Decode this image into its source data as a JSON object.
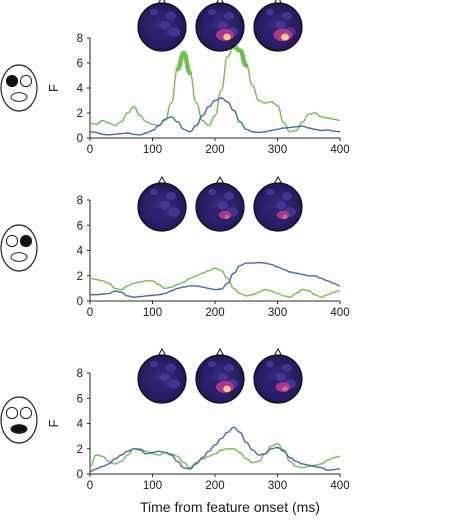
{
  "colors": {
    "green": "#6cc24a",
    "blue": "#3f6cae",
    "axis": "#2a2a2a",
    "face_fill": "#ffffff",
    "face_dark": "#111111",
    "topo_bg": "#2a1d66",
    "topo_hot": "#c33a8e",
    "topo_max": "#f7d77b"
  },
  "x_axis_title": "Time from feature onset (ms)",
  "chart_data": [
    {
      "type": "line",
      "feature": "left-eye",
      "ylabel": "F",
      "xlim": [
        0,
        400
      ],
      "ylim": [
        0,
        8
      ],
      "xticks": [
        0,
        100,
        200,
        300,
        400
      ],
      "yticks": [
        0,
        2,
        4,
        6,
        8
      ],
      "series": [
        {
          "color": "green",
          "x": [
            0,
            10,
            20,
            30,
            40,
            50,
            60,
            70,
            80,
            90,
            100,
            110,
            120,
            130,
            140,
            150,
            160,
            170,
            180,
            190,
            200,
            210,
            220,
            230,
            240,
            250,
            260,
            270,
            280,
            290,
            300,
            310,
            320,
            330,
            340,
            350,
            360,
            370,
            380,
            390,
            400
          ],
          "y": [
            1.2,
            1.1,
            1.4,
            1.2,
            1.0,
            1.3,
            2.0,
            2.5,
            1.8,
            1.3,
            1.1,
            1.0,
            1.4,
            2.8,
            5.5,
            6.8,
            5.2,
            2.8,
            1.4,
            1.0,
            1.8,
            3.8,
            6.5,
            7.3,
            7.0,
            5.8,
            4.2,
            3.0,
            2.8,
            2.9,
            2.6,
            1.2,
            0.5,
            0.6,
            1.3,
            1.9,
            2.0,
            1.7,
            1.6,
            1.5,
            1.4
          ]
        },
        {
          "color": "blue",
          "x": [
            0,
            10,
            20,
            30,
            40,
            50,
            60,
            70,
            80,
            90,
            100,
            110,
            120,
            130,
            140,
            150,
            160,
            170,
            180,
            190,
            200,
            210,
            220,
            230,
            240,
            250,
            260,
            270,
            280,
            290,
            300,
            310,
            320,
            330,
            340,
            350,
            360,
            370,
            380,
            390,
            400
          ],
          "y": [
            0.5,
            0.45,
            0.3,
            0.25,
            0.3,
            0.35,
            0.4,
            0.3,
            0.25,
            0.4,
            0.6,
            1.0,
            1.5,
            1.7,
            1.3,
            0.7,
            0.5,
            1.0,
            1.8,
            2.5,
            3.0,
            3.2,
            2.9,
            2.2,
            1.3,
            0.7,
            0.5,
            0.45,
            0.5,
            0.6,
            0.7,
            0.8,
            0.85,
            0.9,
            0.95,
            0.8,
            0.7,
            0.6,
            0.65,
            0.55,
            0.5
          ]
        }
      ],
      "significant_spans": [
        [
          143,
          155
        ],
        [
          227,
          250
        ]
      ],
      "topomap_intensity": [
        0.05,
        0.55,
        0.6
      ]
    },
    {
      "type": "line",
      "feature": "right-eye",
      "ylabel": "",
      "xlim": [
        0,
        400
      ],
      "ylim": [
        0,
        8
      ],
      "xticks": [
        0,
        100,
        200,
        300,
        400
      ],
      "yticks": [
        0,
        2,
        4,
        6,
        8
      ],
      "series": [
        {
          "color": "green",
          "x": [
            0,
            10,
            20,
            30,
            40,
            50,
            60,
            70,
            80,
            90,
            100,
            110,
            120,
            130,
            140,
            150,
            160,
            170,
            180,
            190,
            200,
            210,
            220,
            230,
            240,
            250,
            260,
            270,
            280,
            290,
            300,
            310,
            320,
            330,
            340,
            350,
            360,
            370,
            380,
            390,
            400
          ],
          "y": [
            1.8,
            1.7,
            1.6,
            1.4,
            1.0,
            0.9,
            1.2,
            1.4,
            1.5,
            1.6,
            1.6,
            1.3,
            1.0,
            1.1,
            1.3,
            1.5,
            1.8,
            2.0,
            2.2,
            2.4,
            2.6,
            2.4,
            1.8,
            1.0,
            0.6,
            0.4,
            0.5,
            0.7,
            0.9,
            0.8,
            0.6,
            0.4,
            0.3,
            0.6,
            0.9,
            0.8,
            0.5,
            0.3,
            0.5,
            0.7,
            0.8
          ]
        },
        {
          "color": "blue",
          "x": [
            0,
            10,
            20,
            30,
            40,
            50,
            60,
            70,
            80,
            90,
            100,
            110,
            120,
            130,
            140,
            150,
            160,
            170,
            180,
            190,
            200,
            210,
            220,
            230,
            240,
            250,
            260,
            270,
            280,
            290,
            300,
            310,
            320,
            330,
            340,
            350,
            360,
            370,
            380,
            390,
            400
          ],
          "y": [
            0.5,
            0.5,
            0.55,
            0.6,
            0.8,
            0.7,
            0.4,
            0.3,
            0.35,
            0.4,
            0.45,
            0.5,
            0.6,
            0.8,
            1.0,
            1.1,
            1.2,
            1.2,
            1.1,
            1.0,
            0.9,
            0.95,
            1.4,
            2.2,
            2.8,
            3.0,
            3.0,
            3.05,
            3.0,
            2.9,
            2.7,
            2.5,
            2.3,
            2.2,
            2.1,
            2.0,
            2.0,
            1.8,
            1.6,
            1.4,
            1.2
          ]
        }
      ],
      "significant_spans": [],
      "topomap_intensity": [
        0.1,
        0.3,
        0.3
      ]
    },
    {
      "type": "line",
      "feature": "mouth",
      "ylabel": "F",
      "xlim": [
        0,
        400
      ],
      "ylim": [
        0,
        8
      ],
      "xticks": [
        0,
        100,
        200,
        300,
        400
      ],
      "yticks": [
        0,
        2,
        4,
        6,
        8
      ],
      "series": [
        {
          "color": "green",
          "x": [
            0,
            10,
            20,
            30,
            40,
            50,
            60,
            70,
            80,
            90,
            100,
            110,
            120,
            130,
            140,
            150,
            160,
            170,
            180,
            190,
            200,
            210,
            220,
            230,
            240,
            250,
            260,
            270,
            280,
            290,
            300,
            310,
            320,
            330,
            340,
            350,
            360,
            370,
            380,
            390,
            400
          ],
          "y": [
            0.6,
            1.5,
            1.4,
            1.0,
            0.8,
            1.0,
            1.5,
            2.0,
            2.0,
            1.8,
            1.6,
            1.5,
            1.7,
            1.6,
            1.4,
            0.9,
            0.5,
            0.9,
            1.2,
            1.4,
            1.6,
            1.9,
            2.0,
            2.0,
            1.7,
            1.2,
            0.9,
            1.0,
            1.6,
            2.2,
            2.4,
            1.9,
            1.0,
            0.6,
            0.5,
            0.6,
            0.7,
            0.8,
            1.1,
            1.3,
            1.4
          ]
        },
        {
          "color": "blue",
          "x": [
            0,
            10,
            20,
            30,
            40,
            50,
            60,
            70,
            80,
            90,
            100,
            110,
            120,
            130,
            140,
            150,
            160,
            170,
            180,
            190,
            200,
            210,
            220,
            230,
            240,
            250,
            260,
            270,
            280,
            290,
            300,
            310,
            320,
            330,
            340,
            350,
            360,
            370,
            380,
            390,
            400
          ],
          "y": [
            0.2,
            0.4,
            0.6,
            0.8,
            1.2,
            1.5,
            1.8,
            2.0,
            1.9,
            1.6,
            1.7,
            1.8,
            1.7,
            1.5,
            1.0,
            0.5,
            0.4,
            0.8,
            1.3,
            1.8,
            2.3,
            2.8,
            3.3,
            3.7,
            3.3,
            2.5,
            1.9,
            1.5,
            1.6,
            2.0,
            2.1,
            1.8,
            1.3,
            1.0,
            0.8,
            0.7,
            0.6,
            0.5,
            0.3,
            0.35,
            0.4
          ]
        }
      ],
      "significant_spans": [],
      "topomap_intensity": [
        0.15,
        0.55,
        0.4
      ]
    }
  ]
}
